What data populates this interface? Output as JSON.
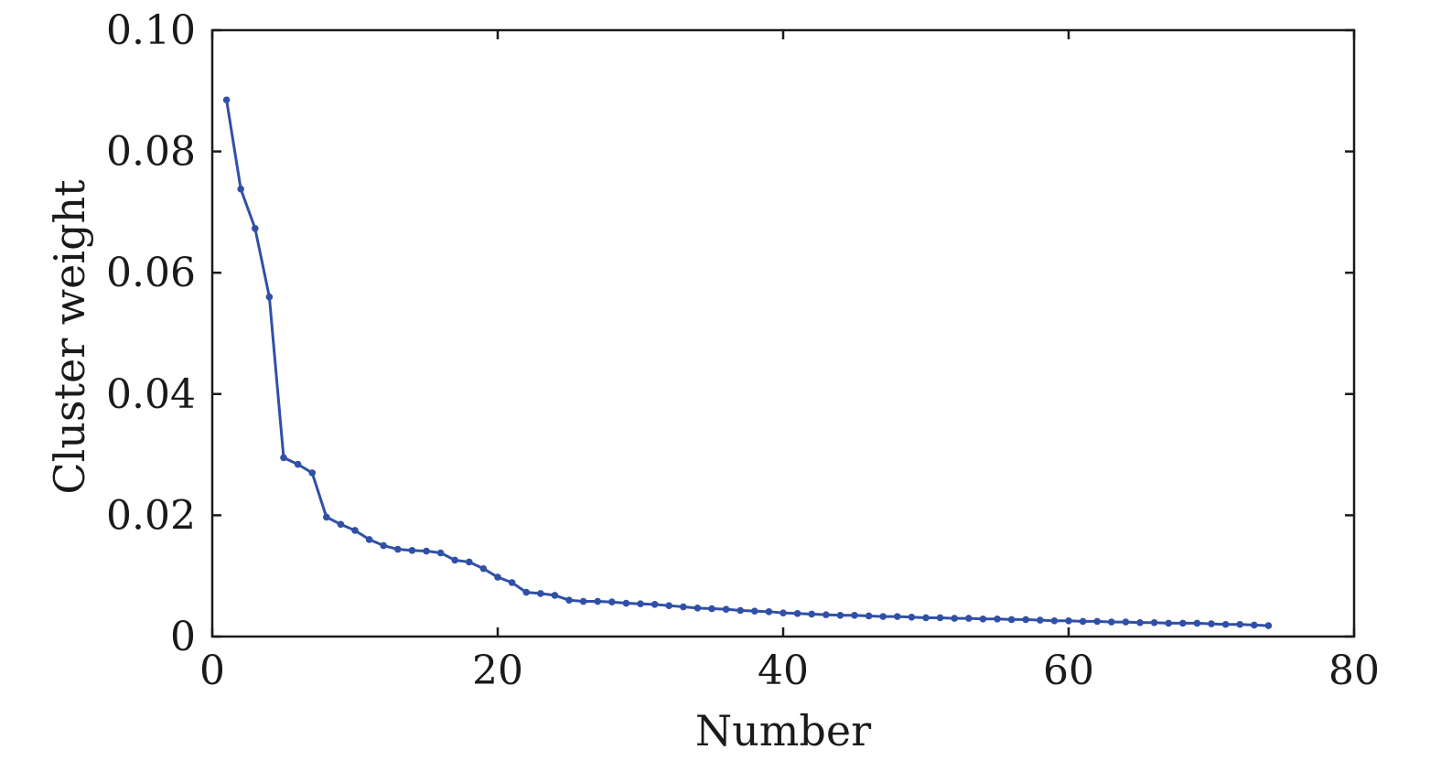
{
  "chart_data": {
    "type": "line",
    "title": "",
    "xlabel": "Number",
    "ylabel": "Cluster weight",
    "xlim": [
      0,
      80
    ],
    "ylim": [
      0,
      0.1
    ],
    "xticks": [
      0,
      20,
      40,
      60,
      80
    ],
    "xtick_labels": [
      "0",
      "20",
      "40",
      "60",
      "80"
    ],
    "yticks": [
      0,
      0.02,
      0.04,
      0.06,
      0.08,
      0.1
    ],
    "ytick_labels": [
      "0",
      "0.02",
      "0.04",
      "0.06",
      "0.08",
      "0.10"
    ],
    "grid": false,
    "legend": "none",
    "series": [
      {
        "color": "#3050a8",
        "x": [
          1,
          2,
          3,
          4,
          5,
          6,
          7,
          8,
          9,
          10,
          11,
          12,
          13,
          14,
          15,
          16,
          17,
          18,
          19,
          20,
          21,
          22,
          23,
          24,
          25,
          26,
          27,
          28,
          29,
          30,
          31,
          32,
          33,
          34,
          35,
          36,
          37,
          38,
          39,
          40,
          41,
          42,
          43,
          44,
          45,
          46,
          47,
          48,
          49,
          50,
          51,
          52,
          53,
          54,
          55,
          56,
          57,
          58,
          59,
          60,
          61,
          62,
          63,
          64,
          65,
          66,
          67,
          68,
          69,
          70,
          71,
          72,
          73,
          74
        ],
        "y": [
          0.0885,
          0.0738,
          0.0673,
          0.056,
          0.0295,
          0.0284,
          0.027,
          0.0197,
          0.0185,
          0.0175,
          0.016,
          0.015,
          0.0144,
          0.0142,
          0.0141,
          0.0138,
          0.0126,
          0.0123,
          0.0112,
          0.0098,
          0.0089,
          0.0073,
          0.0071,
          0.0068,
          0.006,
          0.0058,
          0.0058,
          0.0057,
          0.0055,
          0.0054,
          0.0053,
          0.0051,
          0.0049,
          0.0047,
          0.0046,
          0.0045,
          0.0043,
          0.0042,
          0.0041,
          0.0039,
          0.0038,
          0.0037,
          0.0036,
          0.0035,
          0.0035,
          0.0034,
          0.0033,
          0.0033,
          0.0032,
          0.0031,
          0.0031,
          0.003,
          0.003,
          0.0029,
          0.0029,
          0.0028,
          0.0028,
          0.0027,
          0.0026,
          0.0026,
          0.0025,
          0.0025,
          0.0024,
          0.0024,
          0.0023,
          0.0023,
          0.0022,
          0.0022,
          0.0022,
          0.0021,
          0.002,
          0.002,
          0.0019,
          0.0018
        ]
      }
    ]
  }
}
